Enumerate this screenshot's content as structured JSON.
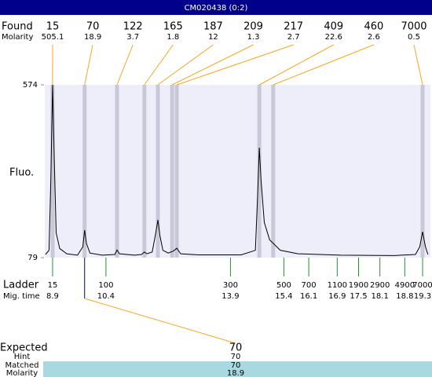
{
  "chart_data": {
    "type": "electropherogram",
    "title": "CM020438 (0:2)",
    "ylabel": "Fluo.",
    "ylim": [
      79,
      574
    ],
    "yticks": [
      574,
      79
    ],
    "xlim": [
      8.68,
      19.52
    ],
    "trace": {
      "color": "#000000",
      "x": [
        8.7,
        8.8,
        8.85,
        8.9,
        8.95,
        9.0,
        9.1,
        9.3,
        9.6,
        9.75,
        9.8,
        9.85,
        9.95,
        10.3,
        10.65,
        10.71,
        10.78,
        11.2,
        11.4,
        11.48,
        11.55,
        11.7,
        11.8,
        11.86,
        11.92,
        12.0,
        12.15,
        12.3,
        12.39,
        12.5,
        13.0,
        14.2,
        14.6,
        14.66,
        14.71,
        14.76,
        14.85,
        15.0,
        15.3,
        15.8,
        17.0,
        18.5,
        19.1,
        19.22,
        19.3,
        19.38,
        19.45
      ],
      "y": [
        88,
        100,
        300,
        574,
        350,
        150,
        105,
        90,
        86,
        110,
        158,
        120,
        92,
        86,
        88,
        101,
        90,
        86,
        88,
        95,
        90,
        95,
        150,
        187,
        140,
        100,
        92,
        98,
        106,
        90,
        87,
        87,
        100,
        250,
        394,
        300,
        180,
        130,
        100,
        90,
        86,
        85,
        88,
        110,
        153,
        110,
        88
      ]
    },
    "found": {
      "label": "Found",
      "molarity_label": "Molarity",
      "color": "#f5a623",
      "values": [
        15,
        70,
        122,
        165,
        187,
        209,
        217,
        409,
        460,
        7000
      ],
      "molarity": [
        505.1,
        18.9,
        3.7,
        1.8,
        12,
        1.3,
        2.7,
        22.6,
        2.6,
        0.5
      ],
      "times": [
        8.9,
        9.8,
        10.71,
        11.48,
        11.86,
        12.26,
        12.39,
        14.71,
        15.1,
        19.3
      ]
    },
    "ladder": {
      "label": "Ladder",
      "time_label": "Mig. time",
      "color": "#2e8b2e",
      "sizes": [
        15,
        100,
        300,
        500,
        700,
        1100,
        1900,
        2900,
        4900,
        7000
      ],
      "times": [
        8.9,
        10.4,
        13.9,
        15.4,
        16.1,
        16.9,
        17.5,
        18.1,
        18.8,
        19.3
      ]
    },
    "expected": {
      "label": "Expected",
      "hint_label": "Hint",
      "matched_label": "Matched",
      "molarity_label": "Molarity",
      "value": 70,
      "hint": 70,
      "matched": 70,
      "molarity": 18.9,
      "time": 9.8
    }
  }
}
